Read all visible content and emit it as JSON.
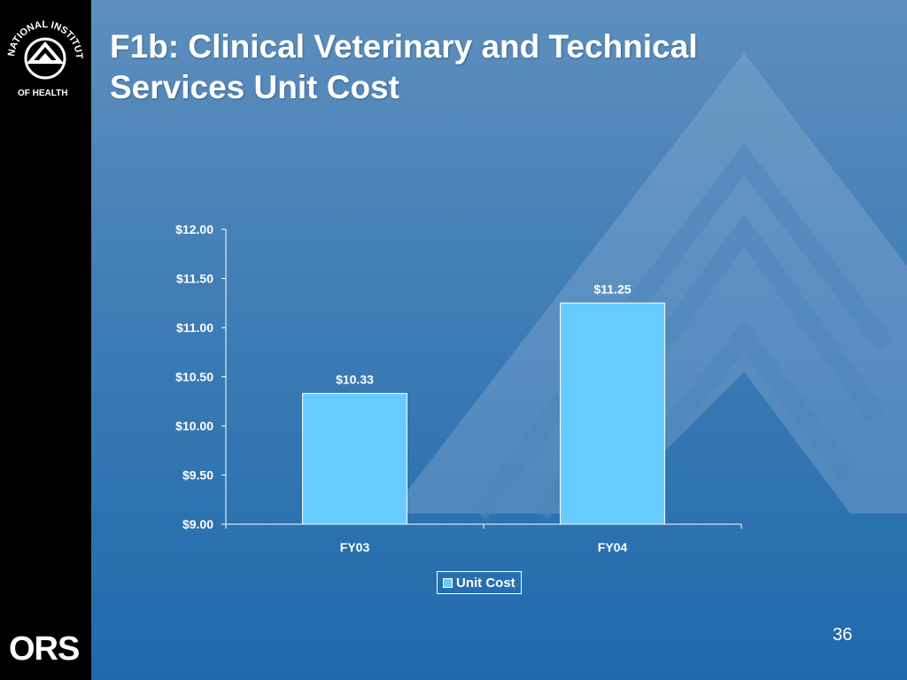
{
  "slide": {
    "title": "F1b:  Clinical Veterinary and Technical\nServices Unit Cost",
    "page_number": "36",
    "logo_top": "NATIONAL INSTITUTES OF HEALTH",
    "logo_bottom": "ORS",
    "background_color": "#3f7db5"
  },
  "chart_data": {
    "type": "bar",
    "categories": [
      "FY03",
      "FY04"
    ],
    "series": [
      {
        "name": "Unit Cost",
        "values": [
          10.33,
          11.25
        ],
        "color": "#66ccff"
      }
    ],
    "data_labels": [
      "$10.33",
      "$11.25"
    ],
    "ylim": [
      9.0,
      12.0
    ],
    "y_ticks": [
      9.0,
      9.5,
      10.0,
      10.5,
      11.0,
      11.5,
      12.0
    ],
    "y_tick_labels": [
      "$9.00",
      "$9.50",
      "$10.00",
      "$10.50",
      "$11.00",
      "$11.50",
      "$12.00"
    ],
    "title": "",
    "xlabel": "",
    "ylabel": "",
    "grid": false,
    "legend_position": "bottom"
  }
}
